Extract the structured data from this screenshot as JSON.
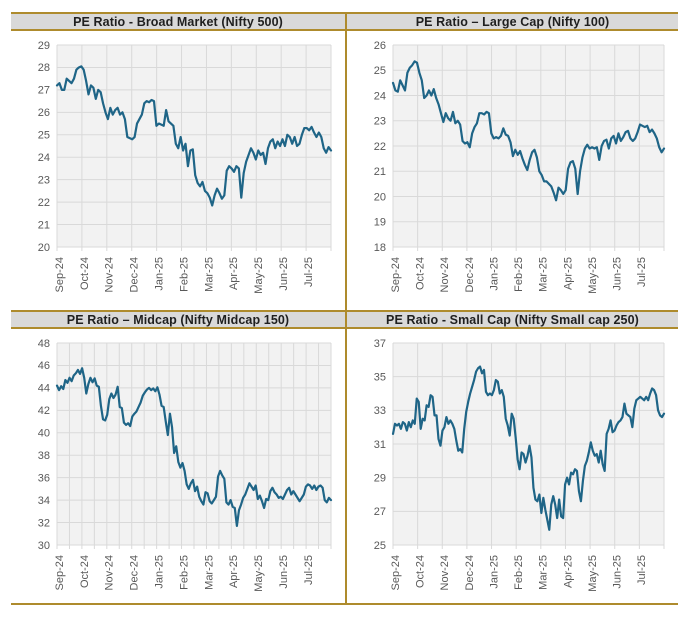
{
  "styles": {
    "gold_border": "#AE8B2D",
    "header_bg": "#D9D9D9",
    "title_color": "#1f1f1f",
    "line_color": "#1F6587",
    "plot_bg": "#F2F2F2",
    "grid_color": "#D9D9D9",
    "tick_label_color": "#595959"
  },
  "chart_data": [
    {
      "type": "line",
      "title": "PE Ratio - Broad Market (Nifty 500)",
      "ylabel": "",
      "xlabel": "",
      "ylim": [
        20,
        29
      ],
      "y_step": 1,
      "x_divisions": 11,
      "grid": true,
      "legend": "none",
      "categories": [
        "Sep-24",
        "Oct-24",
        "Nov-24",
        "Dec-24",
        "Jan-25",
        "Feb-25",
        "Mar-25",
        "Apr-25",
        "May-25",
        "Jun-25",
        "Jul-25"
      ],
      "values": [
        27.2,
        27.3,
        27.0,
        27.0,
        27.5,
        27.4,
        27.3,
        27.5,
        27.9,
        28.0,
        28.05,
        27.9,
        27.4,
        26.8,
        27.2,
        27.1,
        26.6,
        27.0,
        26.9,
        26.4,
        26.0,
        25.7,
        26.2,
        25.9,
        26.1,
        26.2,
        25.9,
        26.0,
        25.7,
        24.9,
        24.85,
        24.8,
        24.9,
        25.5,
        25.7,
        25.9,
        26.4,
        26.5,
        26.45,
        26.55,
        26.5,
        25.4,
        25.5,
        25.45,
        25.4,
        26.1,
        25.6,
        25.5,
        25.4,
        24.6,
        24.4,
        24.9,
        24.3,
        24.6,
        23.6,
        24.3,
        24.35,
        23.2,
        22.85,
        22.7,
        22.9,
        22.5,
        22.4,
        22.2,
        21.85,
        22.3,
        22.6,
        22.4,
        22.15,
        22.3,
        23.4,
        23.6,
        23.5,
        23.35,
        23.6,
        23.5,
        22.2,
        23.3,
        23.8,
        24.1,
        24.4,
        24.2,
        23.9,
        24.3,
        24.1,
        24.2,
        23.7,
        24.4,
        24.7,
        24.8,
        24.4,
        24.7,
        24.5,
        24.8,
        24.5,
        25.0,
        24.9,
        24.6,
        24.9,
        24.5,
        24.6,
        25.0,
        25.3,
        25.3,
        25.2,
        25.35,
        25.1,
        24.9,
        25.1,
        24.9,
        24.4,
        24.2,
        24.45,
        24.3
      ]
    },
    {
      "type": "line",
      "title": "PE Ratio – Large Cap (Nifty 100)",
      "ylabel": "",
      "xlabel": "",
      "ylim": [
        18,
        26
      ],
      "y_step": 1,
      "x_divisions": 11,
      "grid": true,
      "legend": "none",
      "categories": [
        "Sep-24",
        "Oct-24",
        "Nov-24",
        "Dec-24",
        "Jan-25",
        "Feb-25",
        "Mar-25",
        "Apr-25",
        "May-25",
        "Jun-25",
        "Jul-25"
      ],
      "values": [
        24.5,
        24.2,
        24.15,
        24.6,
        24.4,
        24.2,
        24.9,
        25.1,
        25.2,
        25.35,
        25.3,
        24.9,
        24.6,
        23.9,
        24.0,
        24.2,
        24.0,
        24.25,
        23.9,
        23.65,
        23.3,
        22.95,
        23.3,
        23.1,
        23.0,
        23.35,
        22.9,
        23.0,
        22.85,
        22.2,
        22.1,
        22.15,
        21.95,
        22.5,
        22.75,
        22.9,
        23.3,
        23.3,
        23.25,
        23.35,
        23.3,
        22.5,
        22.3,
        22.35,
        22.3,
        22.4,
        22.7,
        22.45,
        22.4,
        22.15,
        21.6,
        21.85,
        21.65,
        21.8,
        21.5,
        21.25,
        21.05,
        21.45,
        21.75,
        21.85,
        21.55,
        21.0,
        20.85,
        20.6,
        20.6,
        20.5,
        20.4,
        20.15,
        19.85,
        20.35,
        20.25,
        20.1,
        20.25,
        21.1,
        21.35,
        21.4,
        21.1,
        20.1,
        21.0,
        21.55,
        21.9,
        22.05,
        21.9,
        21.95,
        21.9,
        21.95,
        21.45,
        22.0,
        22.2,
        22.25,
        21.9,
        22.3,
        22.4,
        22.1,
        22.5,
        22.2,
        22.35,
        22.55,
        22.6,
        22.3,
        22.2,
        22.3,
        22.55,
        22.85,
        22.8,
        22.75,
        22.8,
        22.55,
        22.65,
        22.5,
        22.3,
        21.95,
        21.75,
        21.9
      ]
    },
    {
      "type": "line",
      "title": "PE Ratio – Midcap (Nifty Midcap 150)",
      "ylabel": "",
      "xlabel": "",
      "ylim": [
        30,
        48
      ],
      "y_step": 2,
      "x_divisions": 22,
      "grid": true,
      "legend": "none",
      "categories": [
        "Sep-24",
        "Oct-24",
        "Nov-24",
        "Dec-24",
        "Jan-25",
        "Feb-25",
        "Mar-25",
        "Apr-25",
        "May-25",
        "Jun-25",
        "Jul-25"
      ],
      "values": [
        44.2,
        43.8,
        44.15,
        43.9,
        44.7,
        44.45,
        44.9,
        44.6,
        45.1,
        45.3,
        45.6,
        45.25,
        45.75,
        44.9,
        43.5,
        44.35,
        44.9,
        44.5,
        44.85,
        44.2,
        44.1,
        42.4,
        41.2,
        41.1,
        41.6,
        43.0,
        43.5,
        43.1,
        43.4,
        44.1,
        42.3,
        42.2,
        40.9,
        40.7,
        40.85,
        40.6,
        41.45,
        41.7,
        41.9,
        42.3,
        42.7,
        43.3,
        43.6,
        43.85,
        44.0,
        43.8,
        43.95,
        43.7,
        44.05,
        43.4,
        42.4,
        42.3,
        41.0,
        39.8,
        41.7,
        40.5,
        38.2,
        38.8,
        37.4,
        36.9,
        37.3,
        36.6,
        35.4,
        35.0,
        35.5,
        35.8,
        34.8,
        35.2,
        34.3,
        33.9,
        33.6,
        34.7,
        34.6,
        33.9,
        33.7,
        34.0,
        34.3,
        36.1,
        36.6,
        36.2,
        35.9,
        33.8,
        33.6,
        34.0,
        33.4,
        33.3,
        31.7,
        33.1,
        33.6,
        34.2,
        34.5,
        35.0,
        35.5,
        35.2,
        34.9,
        35.3,
        34.1,
        34.4,
        33.9,
        33.3,
        34.1,
        34.0,
        34.8,
        35.1,
        34.7,
        34.5,
        34.2,
        34.3,
        34.1,
        34.5,
        34.9,
        35.1,
        34.5,
        34.8,
        34.5,
        34.2,
        33.9,
        34.2,
        34.5,
        35.2,
        35.4,
        35.3,
        35.0,
        35.3,
        34.9,
        35.2,
        35.3,
        35.1,
        34.0,
        33.8,
        34.2,
        34.0
      ]
    },
    {
      "type": "line",
      "title": "PE Ratio - Small Cap (Nifty Small cap 250)",
      "ylabel": "",
      "xlabel": "",
      "ylim": [
        25,
        37
      ],
      "y_step": 2,
      "x_divisions": 11,
      "grid": true,
      "legend": "none",
      "categories": [
        "Sep-24",
        "Oct-24",
        "Nov-24",
        "Dec-24",
        "Jan-25",
        "Feb-25",
        "Mar-25",
        "Apr-25",
        "May-25",
        "Jun-25",
        "Jul-25"
      ],
      "values": [
        31.6,
        32.2,
        32.1,
        32.2,
        31.9,
        32.3,
        32.2,
        31.8,
        32.3,
        32.0,
        32.4,
        32.2,
        33.7,
        33.5,
        31.9,
        32.5,
        32.4,
        33.3,
        33.2,
        33.9,
        33.8,
        32.7,
        32.7,
        31.3,
        30.9,
        31.8,
        32.0,
        32.6,
        32.2,
        32.4,
        32.2,
        31.9,
        31.2,
        30.6,
        30.7,
        30.5,
        31.9,
        32.9,
        33.5,
        34.0,
        34.4,
        34.8,
        35.3,
        35.5,
        35.6,
        35.2,
        35.4,
        34.1,
        33.9,
        34.0,
        33.9,
        34.2,
        34.8,
        34.7,
        34.0,
        34.2,
        33.8,
        32.5,
        32.1,
        31.5,
        32.8,
        32.5,
        31.4,
        30.1,
        29.5,
        30.5,
        30.4,
        29.9,
        30.3,
        30.9,
        30.2,
        28.4,
        27.7,
        27.6,
        28.0,
        26.9,
        27.8,
        27.1,
        26.5,
        25.9,
        27.4,
        27.9,
        27.4,
        26.6,
        27.7,
        26.7,
        26.6,
        28.6,
        29.0,
        28.6,
        29.3,
        29.2,
        29.5,
        29.4,
        28.2,
        27.6,
        28.8,
        29.7,
        30.0,
        30.5,
        31.1,
        30.6,
        30.3,
        30.4,
        29.9,
        30.6,
        29.8,
        29.4,
        31.6,
        31.9,
        32.4,
        31.7,
        31.8,
        32.1,
        32.3,
        32.4,
        32.6,
        33.4,
        32.8,
        32.7,
        32.6,
        32.0,
        33.1,
        33.6,
        33.7,
        33.8,
        33.7,
        33.6,
        33.8,
        33.6,
        34.0,
        34.3,
        34.2,
        33.9,
        33.0,
        32.7,
        32.6,
        32.8
      ]
    }
  ]
}
